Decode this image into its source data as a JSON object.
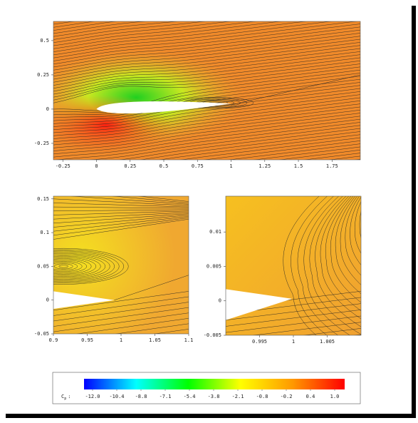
{
  "chart_data": [
    {
      "type": "contour",
      "xlim": [
        -0.32,
        1.96
      ],
      "ylim": [
        -0.37,
        0.64
      ],
      "xticks": [
        -0.25,
        0,
        0.25,
        0.5,
        0.75,
        1,
        1.25,
        1.5,
        1.75
      ],
      "yticks": [
        -0.25,
        0,
        0.25,
        0.5
      ]
    },
    {
      "type": "contour",
      "xlim": [
        0.9,
        1.1
      ],
      "ylim": [
        -0.05,
        0.154
      ],
      "xticks": [
        0.9,
        0.95,
        1,
        1.05,
        1.1
      ],
      "yticks": [
        -0.05,
        0,
        0.05,
        0.1,
        0.15
      ]
    },
    {
      "type": "contour",
      "xlim": [
        0.99,
        1.01
      ],
      "ylim": [
        -0.005,
        0.0152
      ],
      "xticks": [
        0.995,
        1,
        1.005
      ],
      "yticks": [
        -0.005,
        0,
        0.005,
        0.01
      ]
    }
  ],
  "colorbar": {
    "label": [
      "C",
      "p",
      ":"
    ],
    "colors": [
      "#0000ff",
      "#00ffff",
      "#00ff00",
      "#ffff00",
      "#ff9900",
      "#ff0000"
    ],
    "ticks": [
      {
        "value": -12,
        "label": "-12.0"
      },
      -10.4,
      -8.8,
      -7.1,
      -5.4,
      -3.8,
      -2.1,
      -0.8,
      -0.2,
      0.4,
      {
        "value": 1,
        "label": "1.0"
      }
    ]
  }
}
